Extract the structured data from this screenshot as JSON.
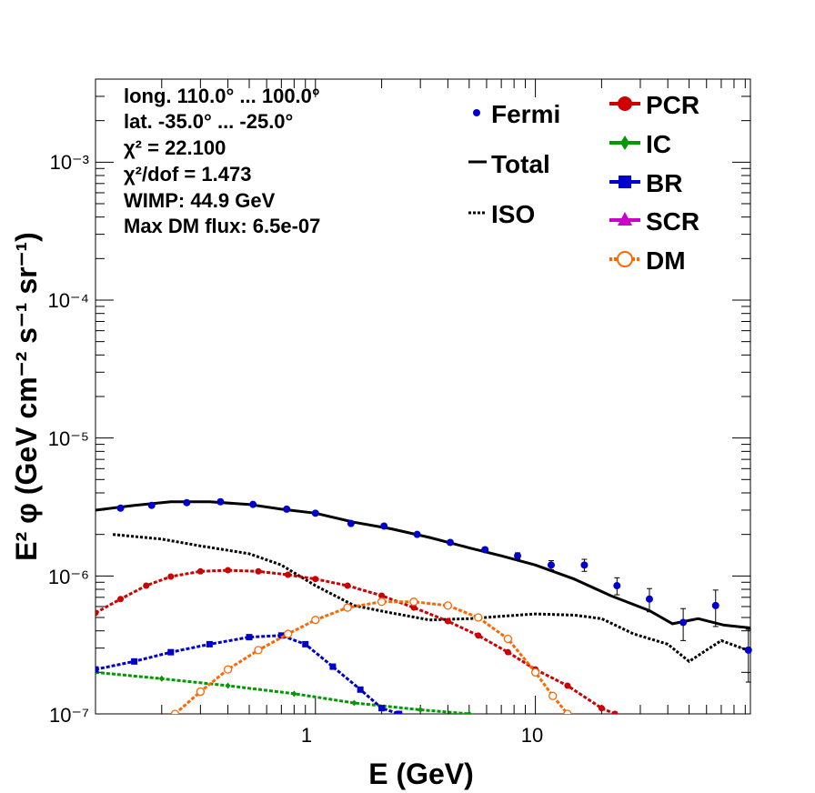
{
  "info": [
    "long. 110.0° ... 100.0°",
    "lat. -35.0° ... -25.0°",
    "χ² = 22.100",
    "χ²/dof = 1.473",
    "WIMP: 44.9 GeV",
    "Max DM flux: 6.5e-07"
  ],
  "axes": {
    "x_title": "E (GeV)",
    "y_title": "E² φ (GeV cm⁻² s⁻¹ sr⁻¹)",
    "x_tick_labels": [
      "1",
      "10"
    ],
    "y_tick_labels": [
      "10⁻⁷",
      "10⁻⁶",
      "10⁻⁵",
      "10⁻⁴",
      "10⁻³"
    ]
  },
  "legend": {
    "left": [
      {
        "label": "Fermi",
        "style": "marker"
      },
      {
        "label": "Total",
        "style": "solid"
      },
      {
        "label": "ISO",
        "style": "dotted"
      }
    ],
    "right": [
      {
        "label": "PCR",
        "color": "#cc0000",
        "marker": "circle"
      },
      {
        "label": "IC",
        "color": "#009900",
        "marker": "diamond"
      },
      {
        "label": "BR",
        "color": "#0000cc",
        "marker": "square"
      },
      {
        "label": "SCR",
        "color": "#cc00cc",
        "marker": "triangle"
      },
      {
        "label": "DM",
        "color": "#ff6600",
        "marker": "open-circle"
      }
    ]
  },
  "chart_data": {
    "type": "line",
    "x_scale": "log",
    "y_scale": "log",
    "xlim": [
      0.1,
      95
    ],
    "ylim": [
      1e-07,
      0.004
    ],
    "fermi": {
      "x": [
        0.13,
        0.18,
        0.26,
        0.37,
        0.52,
        0.74,
        1.0,
        1.45,
        2.05,
        2.9,
        4.1,
        5.9,
        8.3,
        11.8,
        16.7,
        23.5,
        33,
        47,
        66,
        93
      ],
      "y": [
        3.1e-06,
        3.25e-06,
        3.4e-06,
        3.45e-06,
        3.3e-06,
        3.05e-06,
        2.85e-06,
        2.4e-06,
        2.3e-06,
        2e-06,
        1.75e-06,
        1.55e-06,
        1.4e-06,
        1.2e-06,
        1.2e-06,
        8.5e-07,
        6.8e-07,
        4.6e-07,
        6.1e-07,
        2.9e-07
      ],
      "y_err": [
        6e-08,
        6e-08,
        6e-08,
        6e-08,
        6e-08,
        6e-08,
        6e-08,
        6e-08,
        6e-08,
        6e-08,
        6e-08,
        6e-08,
        7e-08,
        9e-08,
        1.2e-07,
        1.2e-07,
        1.3e-07,
        1.2e-07,
        1.8e-07,
        1.2e-07
      ]
    },
    "series": [
      {
        "name": "Total",
        "color": "#000000",
        "style": "solid",
        "x": [
          0.1,
          0.15,
          0.22,
          0.33,
          0.5,
          0.7,
          1.0,
          1.5,
          2.2,
          3.3,
          5,
          7,
          10,
          15,
          22,
          33,
          42,
          55,
          72,
          95
        ],
        "y": [
          3e-06,
          3.25e-06,
          3.45e-06,
          3.45e-06,
          3.3e-06,
          3.05e-06,
          2.85e-06,
          2.45e-06,
          2.2e-06,
          1.9e-06,
          1.6e-06,
          1.4e-06,
          1.2e-06,
          9.5e-07,
          7.2e-07,
          5.6e-07,
          4.5e-07,
          4.9e-07,
          4.4e-07,
          4.2e-07
        ]
      },
      {
        "name": "ISO",
        "color": "#000000",
        "style": "dotted",
        "x": [
          0.12,
          0.2,
          0.3,
          0.5,
          0.7,
          1.0,
          1.5,
          2.2,
          3.3,
          5,
          7,
          10,
          15,
          20,
          28,
          40,
          50,
          70,
          92
        ],
        "y": [
          2e-06,
          1.85e-06,
          1.65e-06,
          1.45e-06,
          1.2e-06,
          8.5e-07,
          6.1e-07,
          5.4e-07,
          4.8e-07,
          4.9e-07,
          5.1e-07,
          5.3e-07,
          5.2e-07,
          4.9e-07,
          3.8e-07,
          3.2e-07,
          2.4e-07,
          3.4e-07,
          2.9e-07
        ]
      },
      {
        "name": "PCR",
        "color": "#cc0000",
        "style": "markers",
        "x": [
          0.1,
          0.13,
          0.17,
          0.22,
          0.3,
          0.4,
          0.55,
          0.75,
          1.0,
          1.4,
          2.0,
          2.8,
          4.0,
          5.5,
          7.5,
          10,
          14,
          20,
          23
        ],
        "y": [
          5.4e-07,
          6.8e-07,
          8.5e-07,
          9.9e-07,
          1.08e-06,
          1.1e-06,
          1.08e-06,
          1.02e-06,
          9.5e-07,
          8.5e-07,
          7.2e-07,
          5.9e-07,
          4.7e-07,
          3.7e-07,
          2.8e-07,
          2.1e-07,
          1.6e-07,
          1.1e-07,
          1e-07
        ]
      },
      {
        "name": "IC",
        "color": "#009900",
        "style": "markers",
        "x": [
          0.1,
          0.2,
          0.4,
          0.8,
          1.5,
          3.0,
          5.0
        ],
        "y": [
          2e-07,
          1.8e-07,
          1.6e-07,
          1.4e-07,
          1.2e-07,
          1.07e-07,
          1e-07
        ]
      },
      {
        "name": "BR",
        "color": "#0000cc",
        "style": "markers",
        "x": [
          0.1,
          0.15,
          0.22,
          0.33,
          0.5,
          0.7,
          0.9,
          1.2,
          1.6,
          2.0,
          2.4
        ],
        "y": [
          2.1e-07,
          2.4e-07,
          2.8e-07,
          3.2e-07,
          3.6e-07,
          3.7e-07,
          3.2e-07,
          2.2e-07,
          1.5e-07,
          1.1e-07,
          1e-07
        ]
      },
      {
        "name": "DM",
        "color": "#ff6600",
        "style": "markers",
        "x": [
          0.23,
          0.3,
          0.4,
          0.55,
          0.75,
          1.0,
          1.4,
          2.0,
          2.8,
          4.0,
          5.5,
          7.5,
          10,
          12,
          14
        ],
        "y": [
          1e-07,
          1.45e-07,
          2.1e-07,
          2.9e-07,
          3.8e-07,
          4.8e-07,
          5.9e-07,
          6.5e-07,
          6.5e-07,
          6.1e-07,
          5e-07,
          3.5e-07,
          2e-07,
          1.35e-07,
          1e-07
        ]
      }
    ]
  }
}
